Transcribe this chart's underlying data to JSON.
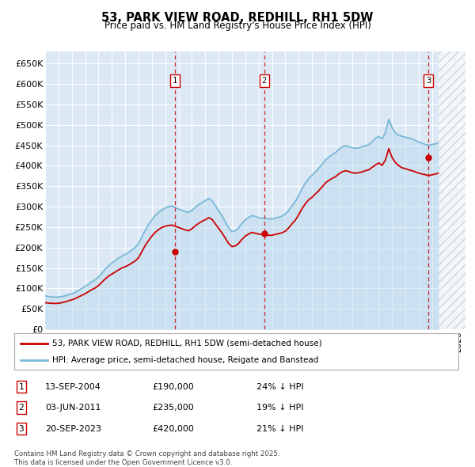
{
  "title": "53, PARK VIEW ROAD, REDHILL, RH1 5DW",
  "subtitle": "Price paid vs. HM Land Registry's House Price Index (HPI)",
  "ylim": [
    0,
    680000
  ],
  "yticks": [
    0,
    50000,
    100000,
    150000,
    200000,
    250000,
    300000,
    350000,
    400000,
    450000,
    500000,
    550000,
    600000,
    650000
  ],
  "ytick_labels": [
    "£0",
    "£50K",
    "£100K",
    "£150K",
    "£200K",
    "£250K",
    "£300K",
    "£350K",
    "£400K",
    "£450K",
    "£500K",
    "£550K",
    "£600K",
    "£650K"
  ],
  "xlim_start": 1995.0,
  "xlim_end": 2026.5,
  "plot_bg_color": "#dce9f5",
  "hpi_color": "#7ab8d9",
  "hpi_fill_color": "#b8d8ee",
  "price_color": "#cc0000",
  "transaction1_x": 2004.71,
  "transaction1_y": 190000,
  "transaction1_label": "1",
  "transaction1_date": "13-SEP-2004",
  "transaction1_price": "£190,000",
  "transaction1_hpi": "24% ↓ HPI",
  "transaction2_x": 2011.42,
  "transaction2_y": 235000,
  "transaction2_label": "2",
  "transaction2_date": "03-JUN-2011",
  "transaction2_price": "£235,000",
  "transaction2_hpi": "19% ↓ HPI",
  "transaction3_x": 2023.72,
  "transaction3_y": 420000,
  "transaction3_label": "3",
  "transaction3_date": "20-SEP-2023",
  "transaction3_price": "£420,000",
  "transaction3_hpi": "21% ↓ HPI",
  "legend1_text": "53, PARK VIEW ROAD, REDHILL, RH1 5DW (semi-detached house)",
  "legend2_text": "HPI: Average price, semi-detached house, Reigate and Banstead",
  "footnote": "Contains HM Land Registry data © Crown copyright and database right 2025.\nThis data is licensed under the Open Government Licence v3.0.",
  "hpi_data_x": [
    1995.0,
    1995.25,
    1995.5,
    1995.75,
    1996.0,
    1996.25,
    1996.5,
    1996.75,
    1997.0,
    1997.25,
    1997.5,
    1997.75,
    1998.0,
    1998.25,
    1998.5,
    1998.75,
    1999.0,
    1999.25,
    1999.5,
    1999.75,
    2000.0,
    2000.25,
    2000.5,
    2000.75,
    2001.0,
    2001.25,
    2001.5,
    2001.75,
    2002.0,
    2002.25,
    2002.5,
    2002.75,
    2003.0,
    2003.25,
    2003.5,
    2003.75,
    2004.0,
    2004.25,
    2004.5,
    2004.75,
    2005.0,
    2005.25,
    2005.5,
    2005.75,
    2006.0,
    2006.25,
    2006.5,
    2006.75,
    2007.0,
    2007.25,
    2007.5,
    2007.75,
    2008.0,
    2008.25,
    2008.5,
    2008.75,
    2009.0,
    2009.25,
    2009.5,
    2009.75,
    2010.0,
    2010.25,
    2010.5,
    2010.75,
    2011.0,
    2011.25,
    2011.5,
    2011.75,
    2012.0,
    2012.25,
    2012.5,
    2012.75,
    2013.0,
    2013.25,
    2013.5,
    2013.75,
    2014.0,
    2014.25,
    2014.5,
    2014.75,
    2015.0,
    2015.25,
    2015.5,
    2015.75,
    2016.0,
    2016.25,
    2016.5,
    2016.75,
    2017.0,
    2017.25,
    2017.5,
    2017.75,
    2018.0,
    2018.25,
    2018.5,
    2018.75,
    2019.0,
    2019.25,
    2019.5,
    2019.75,
    2020.0,
    2020.25,
    2020.5,
    2020.75,
    2021.0,
    2021.25,
    2021.5,
    2021.75,
    2022.0,
    2022.25,
    2022.5,
    2022.75,
    2023.0,
    2023.25,
    2023.5,
    2023.75,
    2024.0,
    2024.25,
    2024.5
  ],
  "hpi_data_y": [
    82000,
    80000,
    79000,
    78500,
    79000,
    80000,
    82000,
    84500,
    87000,
    90500,
    95000,
    100000,
    105000,
    110000,
    116000,
    121000,
    128000,
    137000,
    147000,
    155000,
    162000,
    168000,
    174000,
    179000,
    183000,
    188000,
    194000,
    200000,
    210000,
    226000,
    242000,
    256000,
    268000,
    278000,
    286000,
    292000,
    297000,
    300000,
    302000,
    298000,
    294000,
    291000,
    288000,
    286000,
    291000,
    298000,
    305000,
    310000,
    315000,
    320000,
    315000,
    303000,
    290000,
    278000,
    263000,
    248000,
    239000,
    241000,
    248000,
    259000,
    268000,
    274000,
    278000,
    276000,
    273000,
    272000,
    271000,
    270000,
    270000,
    272000,
    274000,
    277000,
    282000,
    291000,
    302000,
    313000,
    327000,
    344000,
    358000,
    369000,
    377000,
    385000,
    394000,
    403000,
    414000,
    421000,
    427000,
    432000,
    440000,
    446000,
    449000,
    447000,
    444000,
    443000,
    444000,
    447000,
    449000,
    452000,
    459000,
    467000,
    472000,
    466000,
    481000,
    514000,
    493000,
    480000,
    475000,
    472000,
    470000,
    468000,
    466000,
    462000,
    458000,
    455000,
    452000,
    450000,
    452000,
    454000,
    456000
  ],
  "price_data_x": [
    1995.0,
    1995.25,
    1995.5,
    1995.75,
    1996.0,
    1996.25,
    1996.5,
    1996.75,
    1997.0,
    1997.25,
    1997.5,
    1997.75,
    1998.0,
    1998.25,
    1998.5,
    1998.75,
    1999.0,
    1999.25,
    1999.5,
    1999.75,
    2000.0,
    2000.25,
    2000.5,
    2000.75,
    2001.0,
    2001.25,
    2001.5,
    2001.75,
    2002.0,
    2002.25,
    2002.5,
    2002.75,
    2003.0,
    2003.25,
    2003.5,
    2003.75,
    2004.0,
    2004.25,
    2004.5,
    2004.75,
    2005.0,
    2005.25,
    2005.5,
    2005.75,
    2006.0,
    2006.25,
    2006.5,
    2006.75,
    2007.0,
    2007.25,
    2007.5,
    2007.75,
    2008.0,
    2008.25,
    2008.5,
    2008.75,
    2009.0,
    2009.25,
    2009.5,
    2009.75,
    2010.0,
    2010.25,
    2010.5,
    2010.75,
    2011.0,
    2011.25,
    2011.5,
    2011.75,
    2012.0,
    2012.25,
    2012.5,
    2012.75,
    2013.0,
    2013.25,
    2013.5,
    2013.75,
    2014.0,
    2014.25,
    2014.5,
    2014.75,
    2015.0,
    2015.25,
    2015.5,
    2015.75,
    2016.0,
    2016.25,
    2016.5,
    2016.75,
    2017.0,
    2017.25,
    2017.5,
    2017.75,
    2018.0,
    2018.25,
    2018.5,
    2018.75,
    2019.0,
    2019.25,
    2019.5,
    2019.75,
    2020.0,
    2020.25,
    2020.5,
    2020.75,
    2021.0,
    2021.25,
    2021.5,
    2021.75,
    2022.0,
    2022.25,
    2022.5,
    2022.75,
    2023.0,
    2023.25,
    2023.5,
    2023.75,
    2024.0,
    2024.25,
    2024.5
  ],
  "price_data_y": [
    65000,
    64000,
    63500,
    63000,
    63500,
    65000,
    67000,
    69500,
    72000,
    75000,
    79000,
    83000,
    87000,
    92000,
    97000,
    101000,
    107000,
    115000,
    123000,
    130000,
    135000,
    140000,
    145000,
    150000,
    153000,
    157000,
    162000,
    167000,
    175000,
    190000,
    205000,
    217000,
    228000,
    237000,
    244000,
    249000,
    252000,
    254000,
    255000,
    252000,
    249000,
    246000,
    243000,
    241000,
    246000,
    253000,
    259000,
    264000,
    268000,
    273000,
    269000,
    258000,
    247000,
    236000,
    223000,
    210000,
    202000,
    204000,
    210000,
    220000,
    228000,
    233000,
    237000,
    235000,
    233000,
    232000,
    231000,
    230000,
    230000,
    232000,
    234000,
    236000,
    240000,
    248000,
    258000,
    267000,
    280000,
    295000,
    307000,
    317000,
    323000,
    331000,
    339000,
    348000,
    358000,
    364000,
    369000,
    373000,
    380000,
    385000,
    388000,
    386000,
    383000,
    382000,
    383000,
    385000,
    388000,
    390000,
    396000,
    402000,
    407000,
    401000,
    414000,
    442000,
    420000,
    408000,
    400000,
    395000,
    393000,
    390000,
    388000,
    385000,
    382000,
    380000,
    378000,
    376000,
    378000,
    380000,
    382000
  ]
}
